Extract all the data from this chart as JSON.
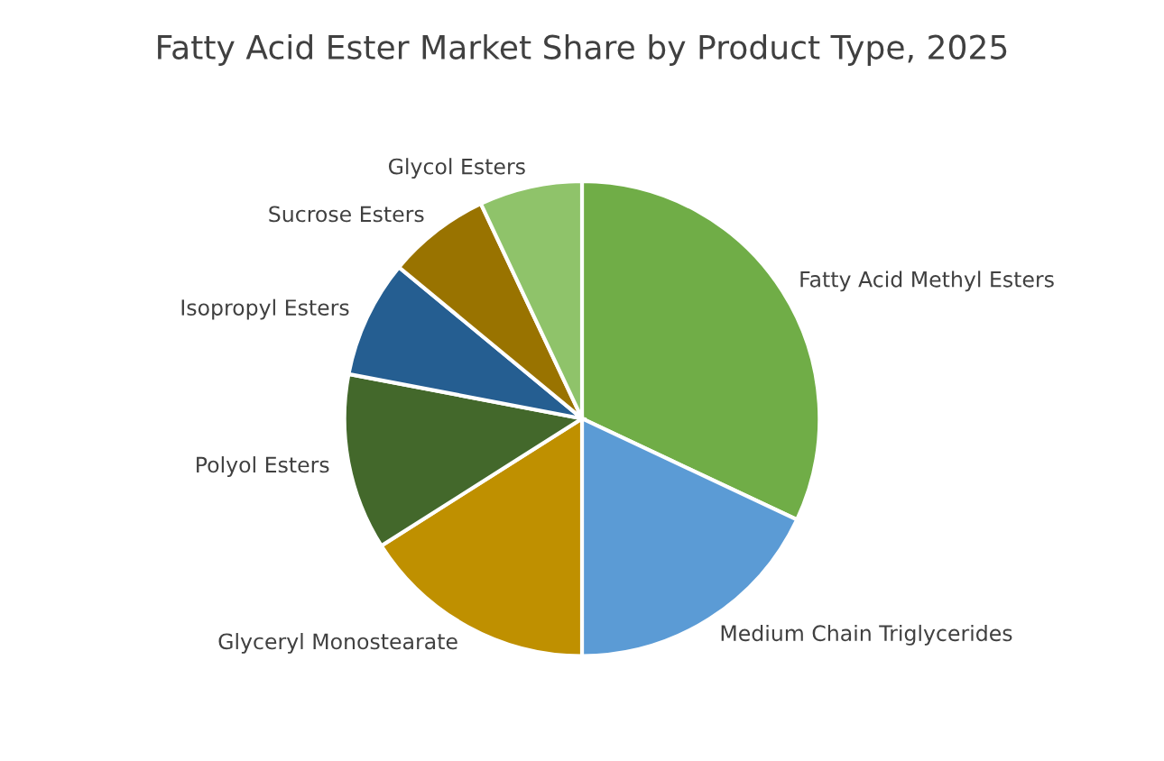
{
  "chart_data": {
    "type": "pie",
    "title": "Fatty Acid Ester Market Share by Product Type, 2025",
    "categories": [
      "Fatty Acid Methyl Esters",
      "Medium Chain Triglycerides",
      "Glyceryl Monostearate",
      "Polyol Esters",
      "Isopropyl Esters",
      "Sucrose Esters",
      "Glycol Esters"
    ],
    "values": [
      32,
      18,
      16,
      12,
      8,
      7,
      7
    ],
    "colors": [
      "#70ad47",
      "#5b9bd5",
      "#bf9000",
      "#43682b",
      "#255e91",
      "#997300",
      "#8fc36a"
    ],
    "legend": false
  }
}
